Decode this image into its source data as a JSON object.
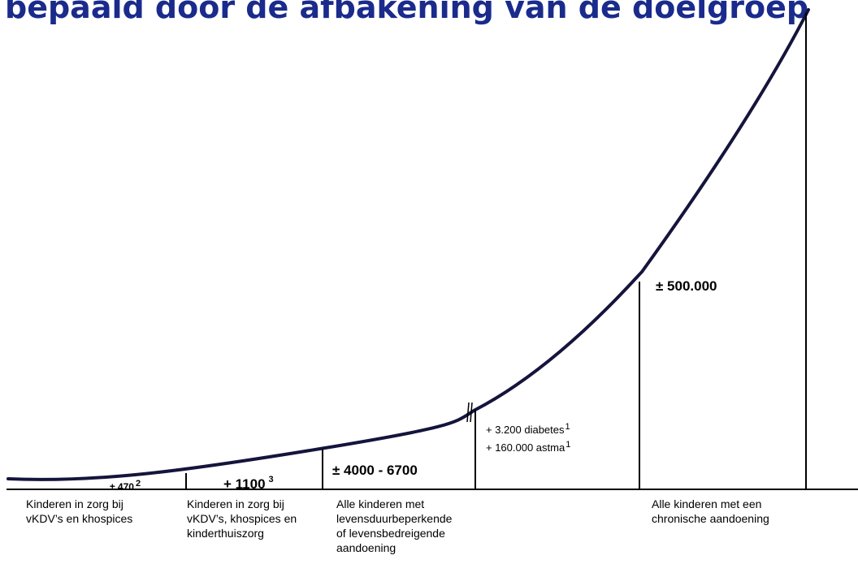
{
  "title": "bepaald door de afbakening van de doelgroep",
  "colors": {
    "title": "#1a2b8c",
    "curve": "#14143c",
    "lines": "#000000"
  },
  "values": {
    "v470": "± 470",
    "v470_sup": "2",
    "v1100": "+ 1100",
    "v1100_sup": "3",
    "v4000": "± 4000 - 6700",
    "v500000": "± 500.000"
  },
  "notes": {
    "diabetes": "+ 3.200 diabetes",
    "diabetes_sup": "1",
    "astma": "+ 160.000 astma",
    "astma_sup": "1"
  },
  "categories": {
    "cat1": [
      "Kinderen in zorg bij",
      "vKDV’s en khospices"
    ],
    "cat2": [
      "Kinderen in zorg bij",
      "vKDV’s, khospices en",
      "kinderthuiszorg"
    ],
    "cat3": [
      "Alle kinderen met",
      "levensduurbeperkende",
      "of levensbedreigende",
      "aandoening"
    ],
    "cat4": [
      "Alle kinderen met een",
      "chronische aandoening"
    ]
  }
}
